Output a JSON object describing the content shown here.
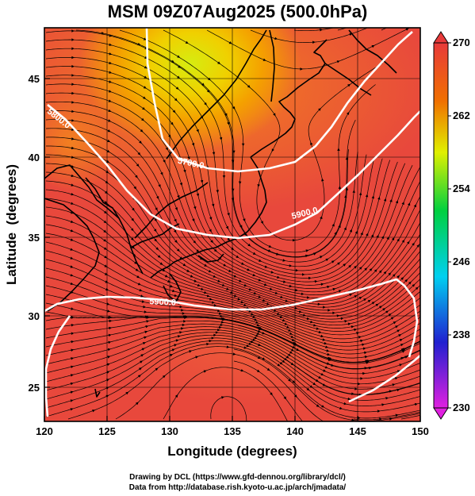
{
  "title": "MSM 09Z07Aug2025 (500.0hPa)",
  "x_axis": {
    "label": "Longitude (degrees)",
    "range": [
      120,
      150
    ],
    "ticks": [
      "120",
      "125",
      "130",
      "135",
      "140",
      "145",
      "150"
    ]
  },
  "y_axis": {
    "label": "Latitude  (degrees)",
    "range": [
      22.5,
      47.5
    ],
    "ticks": [
      "25",
      "30",
      "35",
      "40",
      "45"
    ]
  },
  "colorbar": {
    "range": [
      230,
      270
    ],
    "ticks": [
      "230",
      "238",
      "246",
      "254",
      "262",
      "270"
    ],
    "colors": [
      "#e020e0",
      "#2020d0",
      "#00d0f0",
      "#00d040",
      "#e0f000",
      "#f07000",
      "#e83a3a"
    ]
  },
  "contours": {
    "color": "#ffffff",
    "items": [
      {
        "label": "5700.0"
      },
      {
        "label": "5800.0"
      },
      {
        "label": "5900.0"
      },
      {
        "label": "5900.0"
      }
    ]
  },
  "credits": {
    "line1": "Drawing by DCL (https://www.gfd-dennou.org/library/dcl/)",
    "line2": "Data from http://database.rish.kyoto-u.ac.jp/arch/jmadata/"
  }
}
